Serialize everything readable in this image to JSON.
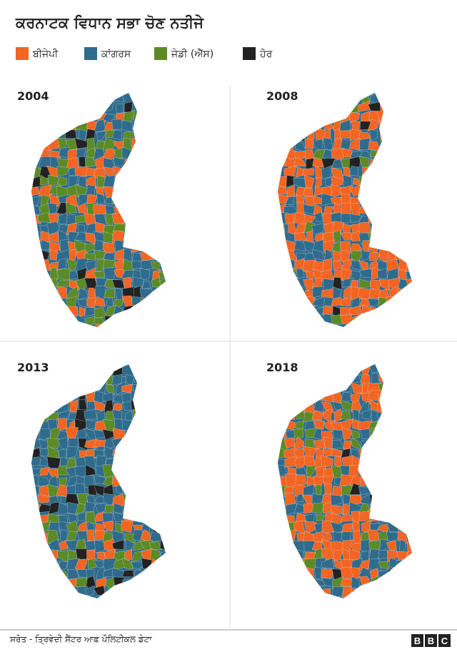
{
  "title": "ਕਰਨਾਟਕ ਵਿਧਾਨ ਸਭਾ ਚੋਣ ਨਤੀਜੇ",
  "legend": [
    {
      "label": "ਬੀਜੇਪੀ",
      "color": "#f26522"
    },
    {
      "label": "ਕਾਂਗਰਸ",
      "color": "#2f6b8c"
    },
    {
      "label": "ਜੇਡੀ (ਐੱਸ)",
      "color": "#5b8a26"
    },
    {
      "label": "ਹੋਰ",
      "color": "#222222"
    }
  ],
  "maps": [
    {
      "year": "2004"
    },
    {
      "year": "2008"
    },
    {
      "year": "2013"
    },
    {
      "year": "2018"
    }
  ],
  "source": "ਸਰੋਤ - ਤ੍ਰਿਵੇਦੀ ਸੈਂਟਰ ਆਫ਼ ਪੌਲਿਟੀਕਲ ਡੇਟਾ",
  "logo": "BBC"
}
